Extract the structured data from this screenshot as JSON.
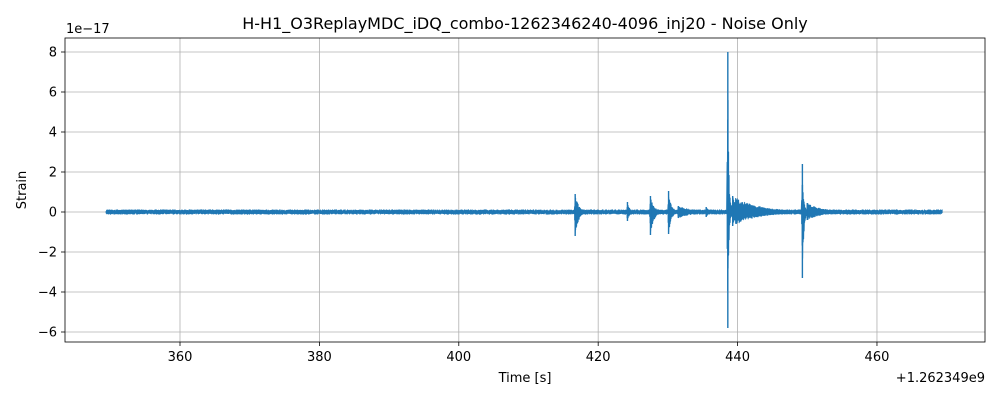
{
  "chart_data": {
    "type": "line",
    "title": "H-H1_O3ReplayMDC_iDQ_combo-1262346240-4096_inj20 - Noise Only",
    "xlabel": "Time [s]",
    "ylabel": "Strain",
    "x_offset_label": "+1.262349e9",
    "y_scale_label": "1e−17",
    "xlim": [
      343.5,
      475.5
    ],
    "ylim": [
      -6.5,
      8.7
    ],
    "x_ticks": [
      360,
      380,
      400,
      420,
      440,
      460
    ],
    "x_tick_labels": [
      "360",
      "380",
      "400",
      "420",
      "440",
      "460"
    ],
    "y_ticks": [
      -6,
      -4,
      -2,
      0,
      2,
      4,
      6,
      8
    ],
    "y_tick_labels": [
      "−6",
      "−4",
      "−2",
      "0",
      "2",
      "4",
      "6",
      "8"
    ],
    "grid": true,
    "series": [
      {
        "color": "#1f77b4",
        "x_range": [
          349.4,
          469.4
        ],
        "baseline_amplitude": 0.1,
        "bursts": [
          {
            "x": 416.7,
            "ymax": 0.9,
            "ymin": -1.2,
            "decay": 0.5
          },
          {
            "x": 424.2,
            "ymax": 0.5,
            "ymin": -0.45,
            "decay": 0.3
          },
          {
            "x": 427.5,
            "ymax": 0.8,
            "ymin": -1.15,
            "decay": 0.5
          },
          {
            "x": 430.1,
            "ymax": 1.05,
            "ymin": -1.1,
            "decay": 0.4
          },
          {
            "x": 431.5,
            "ymax": 0.3,
            "ymin": -0.3,
            "decay": 2.0
          },
          {
            "x": 435.5,
            "ymax": 0.25,
            "ymin": -0.25,
            "decay": 0.4
          },
          {
            "x": 438.6,
            "ymax": 8.0,
            "ymin": -5.8,
            "decay": 0.15
          },
          {
            "x": 439.3,
            "ymax": 0.8,
            "ymin": -0.7,
            "decay": 3.5
          },
          {
            "x": 449.3,
            "ymax": 2.4,
            "ymin": -3.3,
            "decay": 0.2
          },
          {
            "x": 450.0,
            "ymax": 0.45,
            "ymin": -0.4,
            "decay": 2.0
          }
        ]
      }
    ]
  }
}
